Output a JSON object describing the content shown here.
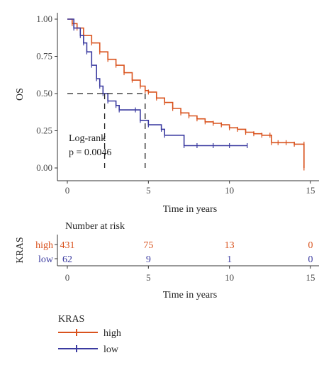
{
  "chart_data": {
    "type": "line",
    "title": "",
    "xlabel": "Time in years",
    "ylabel": "OS",
    "xlim": [
      0,
      15
    ],
    "ylim": [
      0,
      1
    ],
    "x_ticks": [
      "0",
      "5",
      "10",
      "15"
    ],
    "y_ticks": [
      "0.00",
      "0.25",
      "0.50",
      "0.75",
      "1.00"
    ],
    "grid": false,
    "series": [
      {
        "name": "high",
        "color": "#d9531e",
        "x": [
          0,
          0.3,
          0.6,
          1.0,
          1.5,
          2.0,
          2.5,
          3.0,
          3.5,
          4.0,
          4.5,
          4.8,
          5.0,
          5.5,
          6.0,
          6.5,
          7.0,
          7.5,
          8.0,
          8.5,
          9.0,
          9.5,
          10.0,
          10.5,
          11.0,
          11.5,
          12.0,
          12.5,
          12.6,
          13.0,
          13.5,
          14.0,
          14.6,
          14.6
        ],
        "y": [
          1.0,
          0.97,
          0.94,
          0.89,
          0.84,
          0.78,
          0.73,
          0.69,
          0.64,
          0.59,
          0.55,
          0.52,
          0.51,
          0.47,
          0.44,
          0.4,
          0.37,
          0.35,
          0.33,
          0.31,
          0.3,
          0.29,
          0.27,
          0.26,
          0.24,
          0.23,
          0.22,
          0.22,
          0.17,
          0.17,
          0.17,
          0.16,
          0.16,
          0.0
        ]
      },
      {
        "name": "low",
        "color": "#3b3ba0",
        "x": [
          0,
          0.4,
          0.8,
          1.0,
          1.2,
          1.5,
          1.8,
          2.0,
          2.2,
          2.5,
          3.0,
          3.2,
          4.2,
          4.5,
          5.0,
          5.8,
          6.0,
          7.2,
          8.0,
          9.0,
          10.0,
          11.1
        ],
        "y": [
          1.0,
          0.94,
          0.89,
          0.84,
          0.78,
          0.69,
          0.6,
          0.55,
          0.5,
          0.45,
          0.42,
          0.39,
          0.39,
          0.32,
          0.29,
          0.26,
          0.22,
          0.15,
          0.15,
          0.15,
          0.15,
          0.15
        ]
      }
    ],
    "median_lines": [
      {
        "x": 2.3,
        "y": 0.5
      },
      {
        "x": 4.8,
        "y": 0.5
      }
    ],
    "annotations": [
      "Log-rank",
      "p = 0.0046"
    ],
    "risk_table": {
      "title": "Number at risk",
      "strata_label": "KRAS",
      "times": [
        0,
        5,
        10,
        15
      ],
      "rows": [
        {
          "name": "high",
          "color": "#d9531e",
          "counts": [
            "431",
            "75",
            "13",
            "0"
          ]
        },
        {
          "name": "low",
          "color": "#3b3ba0",
          "counts": [
            "62",
            "9",
            "1",
            "0"
          ]
        }
      ],
      "xlabel": "Time in years",
      "x_ticks": [
        "0",
        "5",
        "10",
        "15"
      ]
    },
    "legend": {
      "title": "KRAS",
      "placement": "bottom-left",
      "entries": [
        {
          "name": "high",
          "color": "#d9531e"
        },
        {
          "name": "low",
          "color": "#3b3ba0"
        }
      ]
    }
  }
}
